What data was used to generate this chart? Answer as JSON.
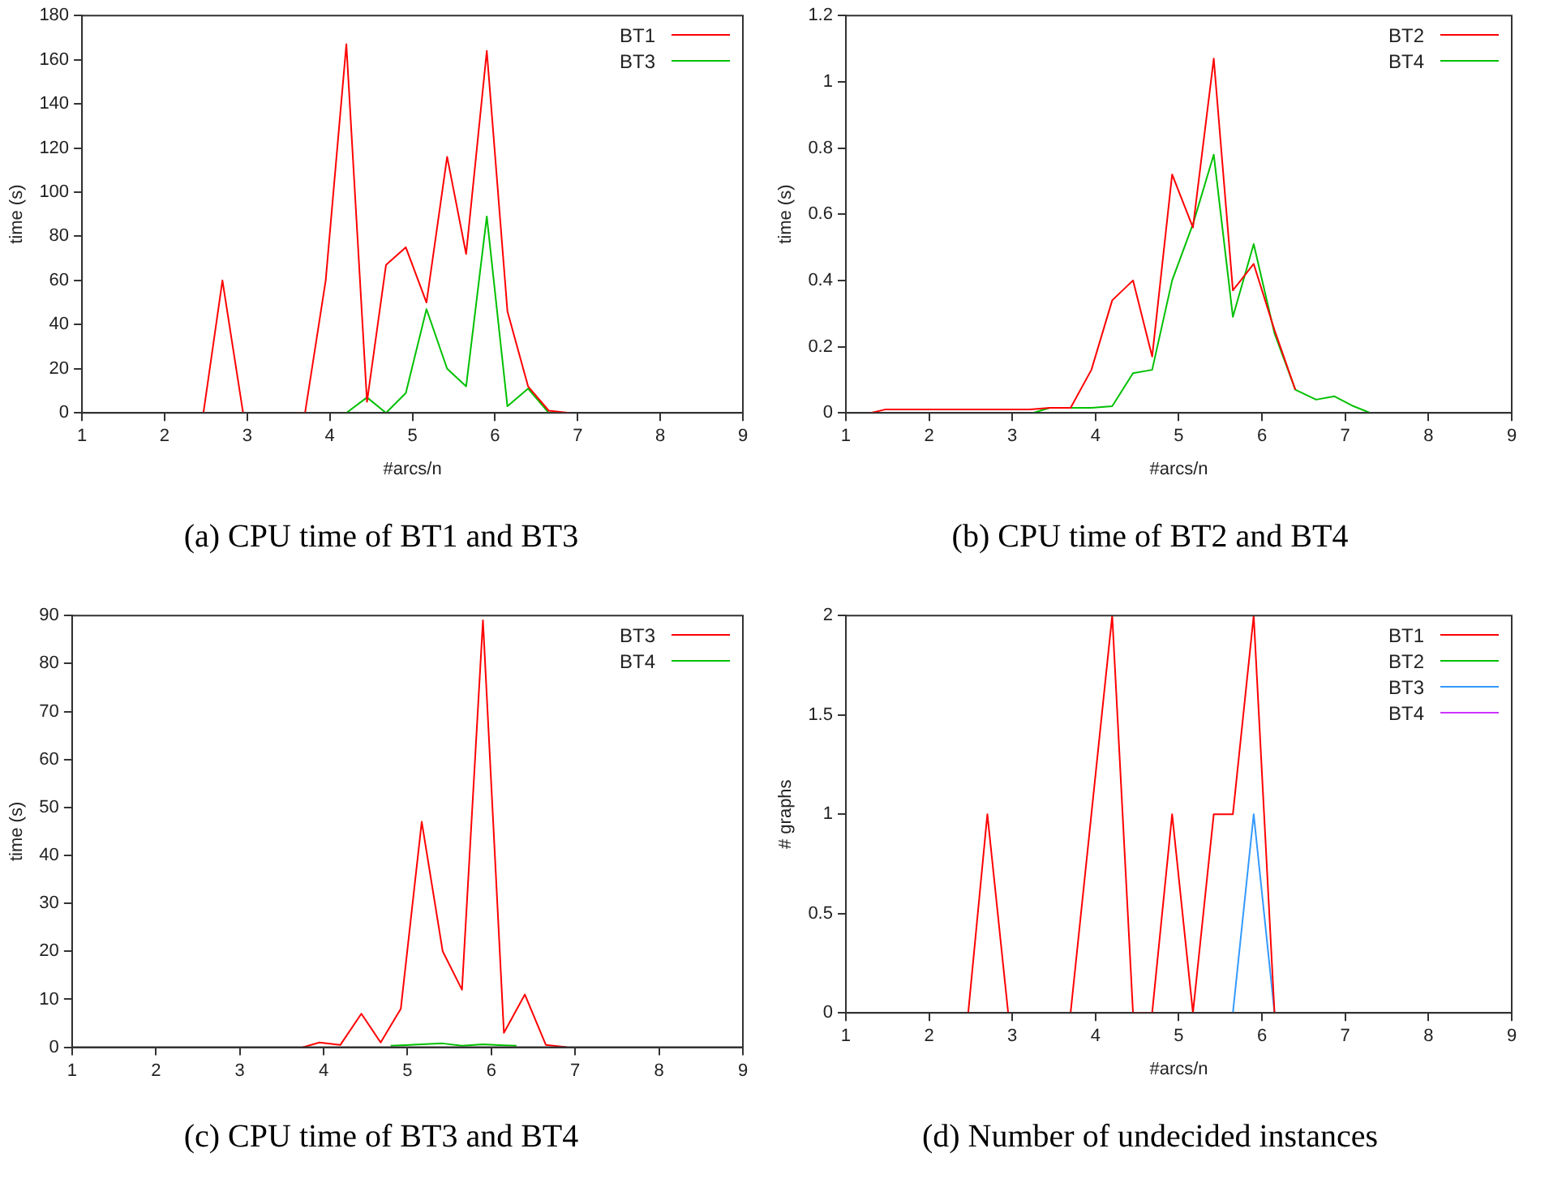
{
  "chart_data": [
    {
      "type": "line",
      "title": "(a) CPU time of BT1 and BT3",
      "xlabel": "#arcs/n",
      "ylabel": "time (s)",
      "xlim": [
        1,
        9
      ],
      "xticks": [
        1,
        2,
        3,
        4,
        5,
        6,
        7,
        8,
        9
      ],
      "ylim": [
        0,
        180
      ],
      "yticks": [
        0,
        20,
        40,
        60,
        80,
        100,
        120,
        140,
        160,
        180
      ],
      "legend": "top right",
      "grid": false,
      "marker": "none",
      "series": [
        {
          "name": "BT1",
          "color": "#ff0000",
          "x": [
            2.47,
            2.7,
            2.95,
            3.2,
            3.6,
            3.7,
            3.95,
            4.2,
            4.45,
            4.68,
            4.92,
            5.17,
            5.42,
            5.65,
            5.9,
            6.15,
            6.4,
            6.65,
            6.9
          ],
          "values": [
            0,
            60,
            0,
            null,
            0,
            0,
            60,
            167,
            5,
            67,
            75,
            50,
            116,
            72,
            164,
            46,
            12,
            1,
            0
          ]
        },
        {
          "name": "BT3",
          "color": "#00c000",
          "x": [
            4.2,
            4.45,
            4.68,
            4.92,
            5.17,
            5.42,
            5.65,
            5.9,
            6.15,
            6.4,
            6.65,
            6.9
          ],
          "values": [
            0,
            7,
            0,
            9,
            47,
            20,
            12,
            89,
            3,
            11,
            0,
            0
          ]
        }
      ]
    },
    {
      "type": "line",
      "title": "(b) CPU time of BT2 and BT4",
      "xlabel": "#arcs/n",
      "ylabel": "time (s)",
      "xlim": [
        1,
        9
      ],
      "xticks": [
        1,
        2,
        3,
        4,
        5,
        6,
        7,
        8,
        9
      ],
      "ylim": [
        0,
        1.2
      ],
      "yticks": [
        0,
        0.2,
        0.4,
        0.6,
        0.8,
        1,
        1.2
      ],
      "legend": "top right",
      "grid": false,
      "marker": "none",
      "series": [
        {
          "name": "BT2",
          "color": "#ff0000",
          "x": [
            1.3,
            1.47,
            1.7,
            1.95,
            2.2,
            2.45,
            2.7,
            2.95,
            3.2,
            3.45,
            3.7,
            3.95,
            4.2,
            4.45,
            4.68,
            4.92,
            5.17,
            5.42,
            5.65,
            5.9,
            6.15,
            6.4
          ],
          "values": [
            0,
            0.01,
            0.01,
            0.01,
            0.01,
            0.01,
            0.01,
            0.01,
            0.01,
            0.015,
            0.015,
            0.13,
            0.34,
            0.4,
            0.17,
            0.72,
            0.56,
            1.07,
            0.37,
            0.45,
            0.25,
            0.07
          ]
        },
        {
          "name": "BT4",
          "color": "#00c000",
          "x": [
            3.25,
            3.45,
            3.7,
            3.95,
            4.2,
            4.45,
            4.68,
            4.92,
            5.17,
            5.42,
            5.65,
            5.9,
            6.15,
            6.4,
            6.65,
            6.87,
            7.1,
            7.3
          ],
          "values": [
            0,
            0.015,
            0.015,
            0.015,
            0.02,
            0.12,
            0.13,
            0.4,
            0.57,
            0.78,
            0.29,
            0.51,
            0.24,
            0.07,
            0.04,
            0.05,
            0.02,
            0
          ]
        }
      ]
    },
    {
      "type": "line",
      "title": "(c) CPU time of BT3 and BT4",
      "ylabel": "time (s)",
      "xlim": [
        1,
        9
      ],
      "xticks": [
        1,
        2,
        3,
        4,
        5,
        6,
        7,
        8,
        9
      ],
      "ylim": [
        0,
        90
      ],
      "yticks": [
        0,
        10,
        20,
        30,
        40,
        50,
        60,
        70,
        80,
        90
      ],
      "legend": "top right",
      "grid": false,
      "marker": "none",
      "series": [
        {
          "name": "BT3",
          "color": "#ff0000",
          "x": [
            3.75,
            3.95,
            4.2,
            4.45,
            4.68,
            4.92,
            5.17,
            5.42,
            5.65,
            5.9,
            6.15,
            6.4,
            6.65,
            6.9
          ],
          "values": [
            0,
            1,
            0.5,
            7,
            1,
            8,
            47,
            20,
            12,
            89,
            3,
            11,
            0.5,
            0
          ]
        },
        {
          "name": "BT4",
          "color": "#00c000",
          "x": [
            4.8,
            4.92,
            5.17,
            5.42,
            5.65,
            5.9,
            6.15,
            6.3
          ],
          "values": [
            0.3,
            0.4,
            0.6,
            0.8,
            0.3,
            0.6,
            0.4,
            0.3
          ]
        }
      ]
    },
    {
      "type": "line",
      "title": "(d) Number of undecided instances",
      "xlabel": "#arcs/n",
      "ylabel": "# graphs",
      "xlim": [
        1,
        9
      ],
      "xticks": [
        1,
        2,
        3,
        4,
        5,
        6,
        7,
        8,
        9
      ],
      "ylim": [
        0,
        2
      ],
      "yticks": [
        0,
        0.5,
        1,
        1.5,
        2
      ],
      "legend": "top right",
      "grid": false,
      "marker": "none",
      "series": [
        {
          "name": "BT1",
          "color": "#ff0000",
          "x": [
            2.47,
            2.7,
            2.95,
            3.2,
            3.7,
            3.95,
            4.2,
            4.45,
            4.68,
            4.92,
            5.17,
            5.42,
            5.65,
            5.9,
            6.15
          ],
          "values": [
            0,
            1,
            0,
            null,
            0,
            1,
            2,
            0,
            0,
            1,
            0,
            1,
            1,
            2,
            0
          ]
        },
        {
          "name": "BT2",
          "color": "#00c000"
        },
        {
          "name": "BT3",
          "color": "#3399ff",
          "x": [
            5.65,
            5.9,
            6.15
          ],
          "values": [
            0,
            1,
            0
          ]
        },
        {
          "name": "BT4",
          "color": "#cc33ff"
        }
      ]
    }
  ]
}
